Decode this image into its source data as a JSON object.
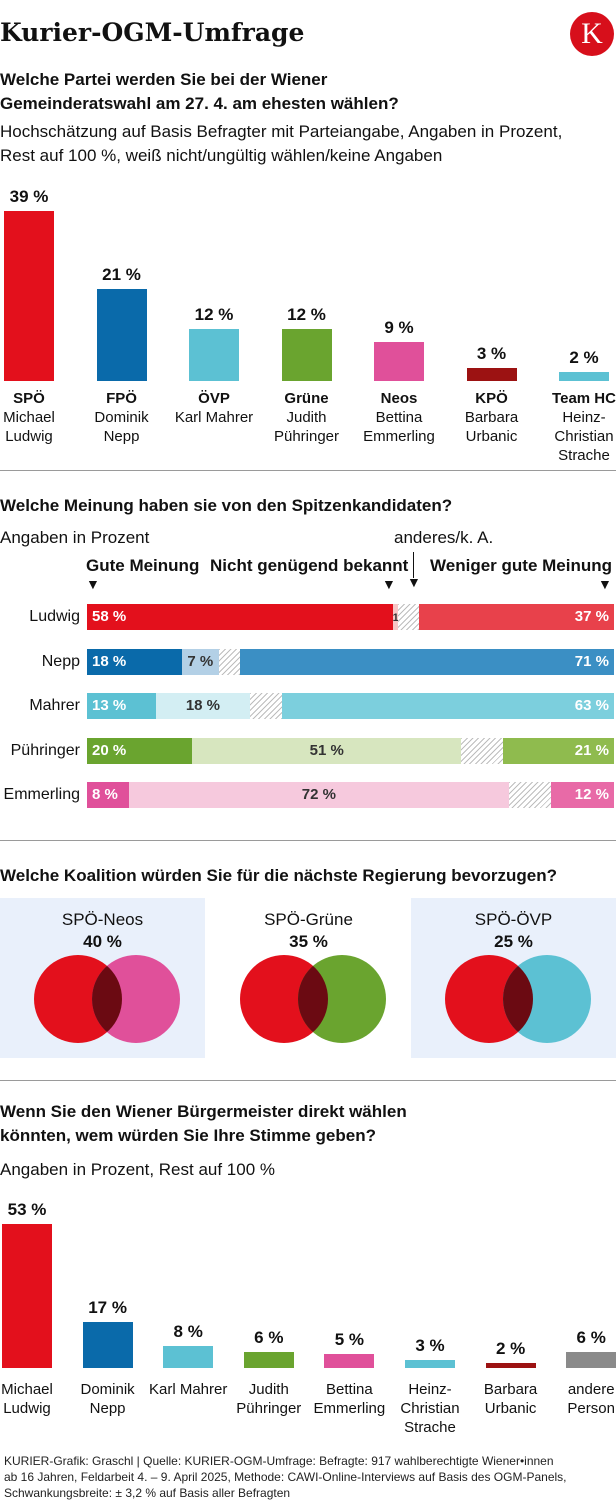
{
  "title": "Kurier-OGM-Umfrage",
  "logo": "K",
  "colors": {
    "SPÖ": "#e3101c",
    "FPÖ": "#0a6aaa",
    "ÖVP": "#5cc1d3",
    "Grüne": "#6aa42f",
    "Neos": "#e0509a",
    "KPÖ": "#9c1212",
    "Team HC": "#5cc1d3",
    "andere": "#8a8a8a"
  },
  "section1": {
    "heading": "Welche Partei werden Sie bei der Wiener Gemeinderatswahl am 27. 4. am ehesten wählen?",
    "subheading": "Hochschätzung auf Basis Befragter mit Parteiangabe, Angaben in Prozent, Rest auf 100 %, weiß nicht/ungültig wählen/keine Angaben"
  },
  "section2": {
    "heading": "Welche Meinung haben sie von den Spitzenkandidaten?",
    "unit": "Angaben in Prozent",
    "other_label": "anderes/k. A.",
    "col_good": "Gute Meinung",
    "col_unknown": "Nicht genügend bekannt",
    "col_bad": "Weniger gute Meinung"
  },
  "section3": {
    "heading": "Welche Koalition würden Sie für die nächste Regierung bevorzugen?",
    "coalitions": [
      {
        "name": "SPÖ-Neos",
        "value": "40 %",
        "left_color": "#e3101c",
        "right_color": "#e0509a",
        "highlight": true
      },
      {
        "name": "SPÖ-Grüne",
        "value": "35 %",
        "left_color": "#e3101c",
        "right_color": "#6aa42f",
        "highlight": false
      },
      {
        "name": "SPÖ-ÖVP",
        "value": "25 %",
        "left_color": "#e3101c",
        "right_color": "#5cc1d3",
        "highlight": true
      }
    ]
  },
  "section4": {
    "heading": "Wenn Sie den Wiener Bürgermeister direkt wählen könnten, wem würden Sie Ihre Stimme geben?",
    "subheading": "Angaben in Prozent, Rest auf 100 %"
  },
  "footer": {
    "line1": "KURIER-Grafik: Graschl | Quelle: KURIER-OGM-Umfrage: Befragte: 917 wahlberechtigte Wiener•innen",
    "line2": "ab 16 Jahren, Feldarbeit 4. – 9. April 2025,  Methode: CAWI-Online-Interviews auf Basis des OGM-Panels,",
    "line3": "Schwankungsbreite: ± 3,2 % auf Basis aller Befragten"
  },
  "chart_data": [
    {
      "type": "bar",
      "categories": [
        "SPÖ",
        "FPÖ",
        "ÖVP",
        "Grüne",
        "Neos",
        "KPÖ",
        "Team HC"
      ],
      "candidates": [
        "Michael Ludwig",
        "Dominik Nepp",
        "Karl Mahrer",
        "Judith Pühringer",
        "Bettina Emmerling",
        "Barbara Urbanic",
        "Heinz-Christian Strache"
      ],
      "values": [
        39,
        21,
        12,
        12,
        9,
        3,
        2
      ],
      "labels": [
        "39 %",
        "21 %",
        "12 %",
        "12 %",
        "9 %",
        "3 %",
        "2 %"
      ],
      "colors": [
        "#e3101c",
        "#0a6aaa",
        "#5cc1d3",
        "#6aa42f",
        "#e0509a",
        "#9c1212",
        "#5cc1d3"
      ],
      "ylim": [
        0,
        39
      ]
    },
    {
      "type": "bar",
      "stacked": true,
      "horizontal": true,
      "categories": [
        "Ludwig",
        "Nepp",
        "Mahrer",
        "Pühringer",
        "Emmerling"
      ],
      "series": [
        {
          "name": "Gute Meinung",
          "values": [
            58,
            18,
            13,
            20,
            8
          ],
          "labels": [
            "58 %",
            "18 %",
            "13 %",
            "20 %",
            "8 %"
          ]
        },
        {
          "name": "Nicht genügend bekannt",
          "values": [
            1,
            7,
            18,
            51,
            72
          ],
          "labels": [
            "1",
            "7 %",
            "18 %",
            "51 %",
            "72 %"
          ]
        },
        {
          "name": "anderes/k. A.",
          "values": [
            4,
            4,
            6,
            8,
            8
          ],
          "labels": [
            "",
            "",
            "",
            "",
            ""
          ]
        },
        {
          "name": "Weniger gute Meinung",
          "values": [
            37,
            71,
            63,
            21,
            12
          ],
          "labels": [
            "37 %",
            "71 %",
            "63 %",
            "21 %",
            "12 %"
          ]
        }
      ],
      "good_colors": [
        "#e3101c",
        "#0a6aaa",
        "#5cc1d3",
        "#6aa42f",
        "#e0509a"
      ],
      "unknown_colors": [
        "#f7c6c6",
        "#b3d0e6",
        "#d3eef3",
        "#d7e6bf",
        "#f6c9dd"
      ],
      "bad_colors": [
        "#e8414b",
        "#3b8fc4",
        "#7ccfdd",
        "#8fbb4e",
        "#e86aa7"
      ]
    },
    {
      "type": "bar",
      "categories": [
        "Michael Ludwig",
        "Dominik Nepp",
        "Karl Mahrer",
        "Judith Pühringer",
        "Bettina Emmerling",
        "Heinz-Christian Strache",
        "Barbara Urbanic",
        "andere Person"
      ],
      "values": [
        53,
        17,
        8,
        6,
        5,
        3,
        2,
        6
      ],
      "labels": [
        "53 %",
        "17 %",
        "8 %",
        "6 %",
        "5 %",
        "3 %",
        "2 %",
        "6 %"
      ],
      "colors": [
        "#e3101c",
        "#0a6aaa",
        "#5cc1d3",
        "#6aa42f",
        "#e0509a",
        "#5cc1d3",
        "#9c1212",
        "#8a8a8a"
      ],
      "ylim": [
        0,
        53
      ]
    }
  ]
}
